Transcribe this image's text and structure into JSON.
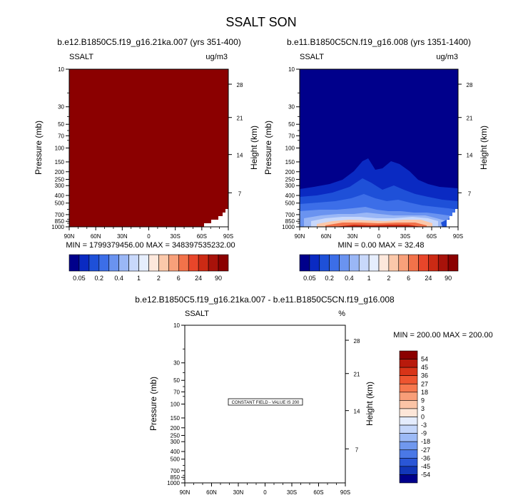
{
  "title": "SSALT SON",
  "chart_data": [
    {
      "type": "heatmap",
      "subtitle": "b.e12.B1850C5.f19_g16.21ka.007 (yrs 351-400)",
      "left_label": "SSALT",
      "right_label": "ug/m3",
      "ylabel": "Pressure (mb)",
      "y2label": "Height (km)",
      "xticks": [
        "90N",
        "60N",
        "30N",
        "0",
        "30S",
        "60S",
        "90S"
      ],
      "yticks": [
        "10",
        "30",
        "50",
        "70",
        "100",
        "150",
        "200",
        "250",
        "300",
        "400",
        "500",
        "700",
        "850",
        "1000"
      ],
      "y2ticks": [
        "28",
        "21",
        "14",
        "7"
      ],
      "ylim": [
        1000,
        10
      ],
      "log_scale_y": true,
      "stats": "MIN = 1799379456.00   MAX = 348397535232.00",
      "field": "saturated",
      "fill_color": "#8b0000"
    },
    {
      "type": "heatmap",
      "subtitle": "b.e11.B1850C5CN.f19_g16.008 (yrs 1351-1400)",
      "left_label": "SSALT",
      "right_label": "ug/m3",
      "ylabel": "Pressure (mb)",
      "y2label": "Height (km)",
      "xticks": [
        "90N",
        "60N",
        "30N",
        "0",
        "30S",
        "60S",
        "90S"
      ],
      "yticks": [
        "10",
        "30",
        "50",
        "70",
        "100",
        "150",
        "200",
        "250",
        "300",
        "400",
        "500",
        "700",
        "850",
        "1000"
      ],
      "y2ticks": [
        "28",
        "21",
        "14",
        "7"
      ],
      "ylim": [
        1000,
        10
      ],
      "log_scale_y": true,
      "stats": "MIN =   0.00   MAX =  32.48",
      "field": "sea-salt concentration, highest near the surface"
    },
    {
      "type": "heatmap",
      "subtitle": "b.e12.B1850C5.f19_g16.21ka.007 - b.e11.B1850C5CN.f19_g16.008",
      "left_label": "SSALT",
      "right_label": "%",
      "ylabel": "Pressure (mb)",
      "y2label": "Height (km)",
      "xticks": [
        "90N",
        "60N",
        "30N",
        "0",
        "30S",
        "60S",
        "90S"
      ],
      "yticks": [
        "10",
        "30",
        "50",
        "70",
        "100",
        "150",
        "200",
        "250",
        "300",
        "400",
        "500",
        "700",
        "850",
        "1000"
      ],
      "y2ticks": [
        "28",
        "21",
        "14",
        "7"
      ],
      "ylim": [
        1000,
        10
      ],
      "log_scale_y": true,
      "stats": "MIN = 200.00   MAX = 200.00",
      "annotation": "CONSTANT FIELD - VALUE IS 200",
      "field": "constant"
    }
  ],
  "colorbar_top": {
    "labels": [
      "0.05",
      "0.2",
      "0.4",
      "1",
      "2",
      "6",
      "24",
      "90"
    ],
    "colors": [
      "#00008b",
      "#0a2ac2",
      "#1e50d8",
      "#3c6ee8",
      "#6a93f0",
      "#9ab7f6",
      "#c8d8fb",
      "#e6eefd",
      "#fde8dc",
      "#fbc8aa",
      "#f8a07a",
      "#f2724a",
      "#e8462a",
      "#cc2a14",
      "#a8120a",
      "#8b0000"
    ]
  },
  "colorbar_diff": {
    "labels": [
      "54",
      "45",
      "36",
      "27",
      "18",
      "9",
      "3",
      "0",
      "-3",
      "-9",
      "-18",
      "-27",
      "-36",
      "-45",
      "-54"
    ],
    "colors": [
      "#8b0000",
      "#b81a0c",
      "#d83418",
      "#ee5530",
      "#f6784e",
      "#f89e78",
      "#fbc4a6",
      "#fde6d8",
      "#e4ecfd",
      "#c4d6fa",
      "#9cbaf6",
      "#7098ee",
      "#4a78e6",
      "#2a56d6",
      "#1236b8",
      "#00008b"
    ]
  }
}
